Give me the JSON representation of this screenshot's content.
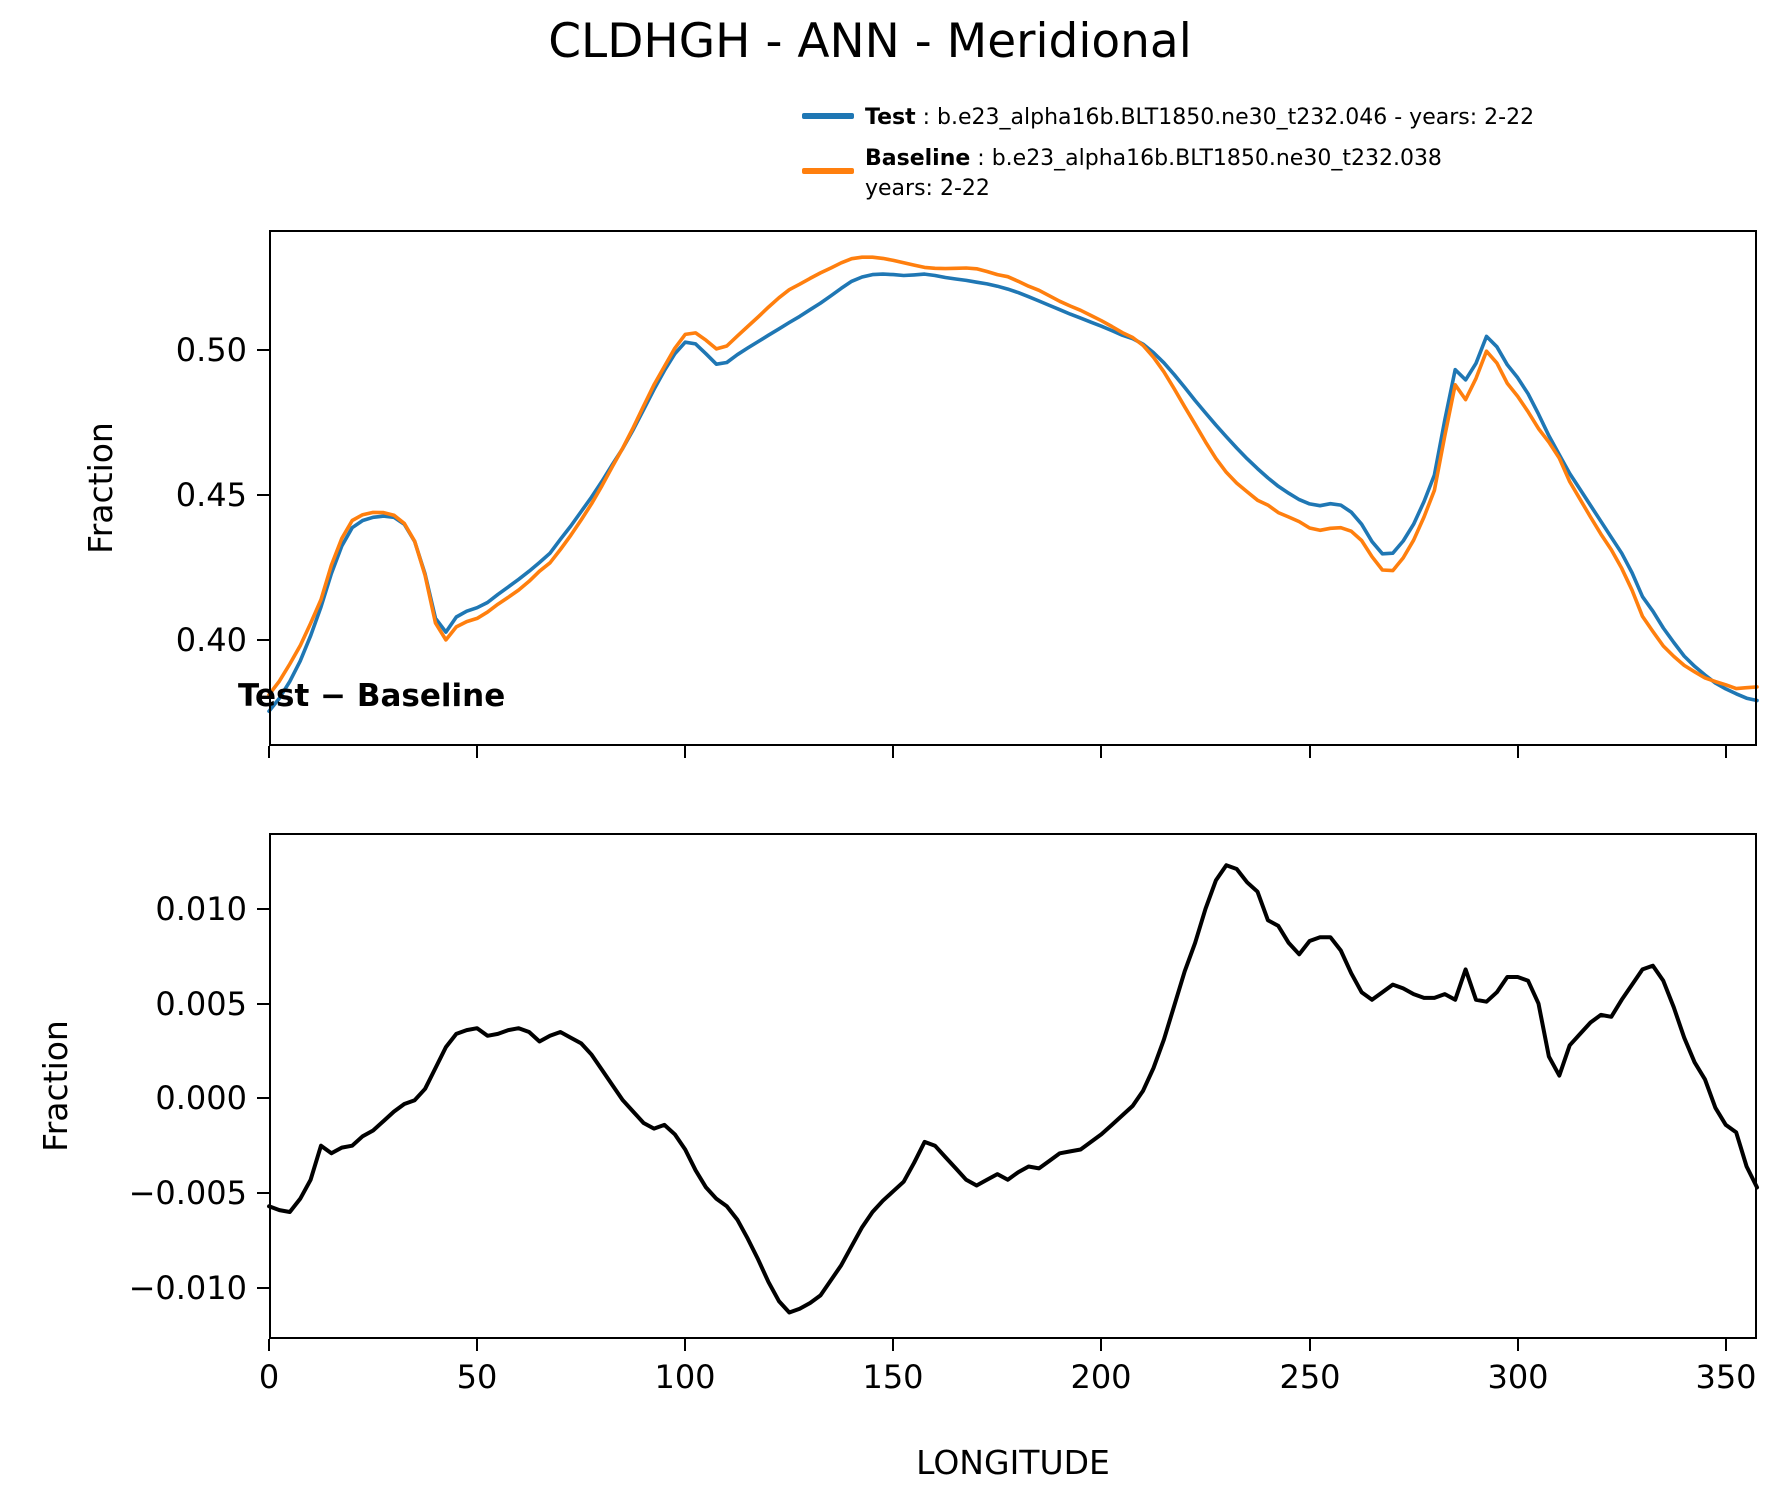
{
  "title": "CLDHGH - ANN - Meridional",
  "legend": {
    "test_name": "Test",
    "test_desc": " : b.e23_alpha16b.BLT1850.ne30_t232.046 - years: 2-22",
    "baseline_name": "Baseline",
    "baseline_desc": " : b.e23_alpha16b.BLT1850.ne30_t232.038",
    "baseline_desc_line2": "years: 2-22"
  },
  "subtitle": "Test − Baseline",
  "xlabel": "LONGITUDE",
  "colors": {
    "test": "#1f77b4",
    "baseline": "#ff7f0e",
    "diff": "#000000",
    "axis": "#000000"
  },
  "chart_data": [
    {
      "id": "main",
      "type": "line",
      "title": "CLDHGH - ANN - Meridional",
      "xlabel": "",
      "ylabel": "Fraction",
      "xlim": [
        0,
        357.5
      ],
      "ylim": [
        0.3635,
        0.5415
      ],
      "xticks": [
        0,
        50,
        100,
        150,
        200,
        250,
        300,
        350
      ],
      "xtick_labels": [],
      "yticks": [
        0.4,
        0.45,
        0.5
      ],
      "ytick_labels": [
        "0.40",
        "0.45",
        "0.50"
      ],
      "grid": false,
      "legend_position": "above-right",
      "x_start": 0,
      "x_step": 2.5,
      "series": [
        {
          "name": "Test",
          "color": "#1f77b4",
          "linewidth": 3.6,
          "values": [
            0.3755,
            0.38,
            0.3858,
            0.3928,
            0.4015,
            0.4115,
            0.423,
            0.4325,
            0.4388,
            0.4413,
            0.4424,
            0.4428,
            0.4424,
            0.44,
            0.434,
            0.4228,
            0.4075,
            0.4028,
            0.408,
            0.41,
            0.4112,
            0.413,
            0.4158,
            0.4184,
            0.421,
            0.4238,
            0.4268,
            0.43,
            0.4348,
            0.4394,
            0.4444,
            0.4494,
            0.4548,
            0.4606,
            0.4662,
            0.4726,
            0.4795,
            0.4865,
            0.493,
            0.4988,
            0.5028,
            0.5022,
            0.4988,
            0.4952,
            0.4958,
            0.4985,
            0.5008,
            0.503,
            0.5052,
            0.5074,
            0.5096,
            0.5117,
            0.514,
            0.5163,
            0.5188,
            0.5214,
            0.5238,
            0.5253,
            0.5261,
            0.5263,
            0.5261,
            0.5258,
            0.526,
            0.5263,
            0.5258,
            0.5251,
            0.5246,
            0.5241,
            0.5235,
            0.5229,
            0.5221,
            0.5211,
            0.5199,
            0.5185,
            0.517,
            0.5155,
            0.514,
            0.5125,
            0.5111,
            0.5097,
            0.5083,
            0.5068,
            0.5052,
            0.504,
            0.5021,
            0.4992,
            0.4957,
            0.4916,
            0.4872,
            0.4827,
            0.4784,
            0.4742,
            0.4702,
            0.4663,
            0.4626,
            0.4592,
            0.456,
            0.4531,
            0.4507,
            0.4485,
            0.447,
            0.4464,
            0.4471,
            0.4466,
            0.4442,
            0.44,
            0.434,
            0.4298,
            0.43,
            0.4342,
            0.44,
            0.4478,
            0.457,
            0.476,
            0.4933,
            0.4898,
            0.4955,
            0.5048,
            0.5012,
            0.495,
            0.4905,
            0.485,
            0.478,
            0.4705,
            0.464,
            0.4575,
            0.452,
            0.4465,
            0.441,
            0.4355,
            0.43,
            0.4232,
            0.415,
            0.41,
            0.4042,
            0.3992,
            0.3945,
            0.391,
            0.388,
            0.3852,
            0.3832,
            0.3815,
            0.38,
            0.3792
          ]
        },
        {
          "name": "Baseline",
          "color": "#ff7f0e",
          "linewidth": 3.6,
          "values": [
            0.3812,
            0.3859,
            0.3918,
            0.3981,
            0.4058,
            0.414,
            0.4259,
            0.4351,
            0.4413,
            0.4433,
            0.4441,
            0.444,
            0.4431,
            0.4403,
            0.4341,
            0.4223,
            0.4059,
            0.4001,
            0.4046,
            0.4064,
            0.4075,
            0.4097,
            0.4124,
            0.4148,
            0.4173,
            0.4203,
            0.4238,
            0.4267,
            0.4313,
            0.4362,
            0.4415,
            0.4471,
            0.4533,
            0.4599,
            0.4663,
            0.4733,
            0.4808,
            0.4881,
            0.4944,
            0.5007,
            0.5055,
            0.506,
            0.5035,
            0.5005,
            0.5015,
            0.5049,
            0.5082,
            0.5115,
            0.5149,
            0.5181,
            0.5209,
            0.5228,
            0.5248,
            0.5267,
            0.5284,
            0.5302,
            0.5316,
            0.5321,
            0.5321,
            0.5317,
            0.531,
            0.5302,
            0.5294,
            0.5286,
            0.5283,
            0.5282,
            0.5283,
            0.5284,
            0.5281,
            0.5272,
            0.5261,
            0.5254,
            0.5238,
            0.5221,
            0.5207,
            0.5188,
            0.5169,
            0.5153,
            0.5138,
            0.512,
            0.5102,
            0.5082,
            0.5061,
            0.5044,
            0.5017,
            0.4976,
            0.4926,
            0.4867,
            0.4805,
            0.4745,
            0.4684,
            0.4627,
            0.4579,
            0.4542,
            0.4512,
            0.4483,
            0.4466,
            0.444,
            0.4425,
            0.4409,
            0.4387,
            0.4379,
            0.4386,
            0.4388,
            0.4376,
            0.4344,
            0.4288,
            0.4242,
            0.424,
            0.4284,
            0.4345,
            0.4425,
            0.4517,
            0.4705,
            0.4881,
            0.483,
            0.4903,
            0.4997,
            0.4956,
            0.4886,
            0.4841,
            0.4788,
            0.473,
            0.4683,
            0.4628,
            0.4547,
            0.4486,
            0.4425,
            0.4366,
            0.4312,
            0.4248,
            0.4172,
            0.4082,
            0.403,
            0.398,
            0.3944,
            0.3913,
            0.3891,
            0.387,
            0.3857,
            0.3846,
            0.3833,
            0.3836,
            0.3839
          ]
        }
      ]
    },
    {
      "id": "diff",
      "type": "line",
      "title": "Test − Baseline",
      "xlabel": "LONGITUDE",
      "ylabel": "Fraction",
      "xlim": [
        0,
        357.5
      ],
      "ylim": [
        -0.0127,
        0.014
      ],
      "xticks": [
        0,
        50,
        100,
        150,
        200,
        250,
        300,
        350
      ],
      "xtick_labels": [
        "0",
        "50",
        "100",
        "150",
        "200",
        "250",
        "300",
        "350"
      ],
      "yticks": [
        0.01,
        0.005,
        0.0,
        -0.005,
        -0.01
      ],
      "ytick_labels": [
        "0.010",
        "0.005",
        "0.000",
        "−0.005",
        "−0.010"
      ],
      "grid": false,
      "x_start": 0,
      "x_step": 2.5,
      "series": [
        {
          "name": "Test − Baseline",
          "color": "#000000",
          "linewidth": 4,
          "values": [
            -0.0057,
            -0.0059,
            -0.006,
            -0.0053,
            -0.0043,
            -0.0025,
            -0.0029,
            -0.0026,
            -0.0025,
            -0.002,
            -0.0017,
            -0.0012,
            -0.0007,
            -0.0003,
            -0.0001,
            0.0005,
            0.0016,
            0.0027,
            0.0034,
            0.0036,
            0.0037,
            0.0033,
            0.0034,
            0.0036,
            0.0037,
            0.0035,
            0.003,
            0.0033,
            0.0035,
            0.0032,
            0.0029,
            0.0023,
            0.0015,
            0.0007,
            -0.0001,
            -0.0007,
            -0.0013,
            -0.0016,
            -0.0014,
            -0.0019,
            -0.0027,
            -0.0038,
            -0.0047,
            -0.0053,
            -0.0057,
            -0.0064,
            -0.0074,
            -0.0085,
            -0.0097,
            -0.0107,
            -0.0113,
            -0.0111,
            -0.0108,
            -0.0104,
            -0.0096,
            -0.0088,
            -0.0078,
            -0.0068,
            -0.006,
            -0.0054,
            -0.0049,
            -0.0044,
            -0.0034,
            -0.0023,
            -0.0025,
            -0.0031,
            -0.0037,
            -0.0043,
            -0.0046,
            -0.0043,
            -0.004,
            -0.0043,
            -0.0039,
            -0.0036,
            -0.0037,
            -0.0033,
            -0.0029,
            -0.0028,
            -0.0027,
            -0.0023,
            -0.0019,
            -0.0014,
            -0.0009,
            -0.0004,
            0.0004,
            0.0016,
            0.0031,
            0.0049,
            0.0067,
            0.0082,
            0.01,
            0.0115,
            0.0123,
            0.0121,
            0.0114,
            0.0109,
            0.0094,
            0.0091,
            0.0082,
            0.0076,
            0.0083,
            0.0085,
            0.0085,
            0.0078,
            0.0066,
            0.0056,
            0.0052,
            0.0056,
            0.006,
            0.0058,
            0.0055,
            0.0053,
            0.0053,
            0.0055,
            0.0052,
            0.0068,
            0.0052,
            0.0051,
            0.0056,
            0.0064,
            0.0064,
            0.0062,
            0.005,
            0.0022,
            0.0012,
            0.0028,
            0.0034,
            0.004,
            0.0044,
            0.0043,
            0.0052,
            0.006,
            0.0068,
            0.007,
            0.0062,
            0.0048,
            0.0032,
            0.0019,
            0.001,
            -0.0005,
            -0.0014,
            -0.0018,
            -0.0036,
            -0.0047
          ]
        }
      ]
    }
  ]
}
